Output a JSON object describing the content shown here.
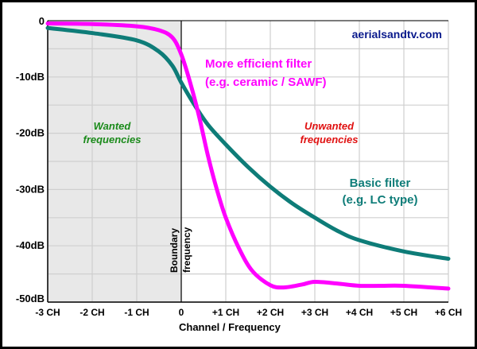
{
  "chart_data": {
    "type": "line",
    "xlabel": "Channel / Frequency",
    "ylabel": "",
    "xlim": [
      -3,
      6
    ],
    "ylim": [
      -50,
      0
    ],
    "grid": true,
    "x_ticks": [
      -3,
      -2,
      -1,
      0,
      1,
      2,
      3,
      4,
      5,
      6
    ],
    "x_tick_labels": [
      "-3 CH",
      "-2 CH",
      "-1 CH",
      "0",
      "+1 CH",
      "+2 CH",
      "+3 CH",
      "+4 CH",
      "+5 CH",
      "+6 CH"
    ],
    "y_ticks": [
      0,
      -10,
      -20,
      -30,
      -40,
      -50
    ],
    "y_tick_labels": [
      "0",
      "-10dB",
      "-20dB",
      "-30dB",
      "-40dB",
      "-50dB"
    ],
    "shaded_region": {
      "x": [
        -3,
        0
      ],
      "color": "#e8e8e8"
    },
    "series": [
      {
        "key": "basic",
        "color": "#0e7c78",
        "x": [
          -3,
          -2,
          -1,
          -0.5,
          -0.2,
          0,
          0.3,
          0.6,
          1,
          1.5,
          2,
          2.5,
          3,
          3.5,
          4,
          5,
          6
        ],
        "y": [
          -1.3,
          -2.2,
          -3.5,
          -5.5,
          -8,
          -11,
          -15,
          -18.5,
          -22,
          -26,
          -29.5,
          -32.5,
          -35,
          -37.3,
          -39,
          -41,
          -42.3
        ]
      },
      {
        "key": "efficient",
        "color": "#ff00ff",
        "x": [
          -3,
          -2,
          -1,
          -0.5,
          -0.2,
          0,
          0.2,
          0.4,
          0.6,
          0.8,
          1,
          1.3,
          1.6,
          2,
          2.3,
          2.7,
          3,
          3.5,
          4,
          4.5,
          5,
          6
        ],
        "y": [
          -0.5,
          -0.6,
          -1,
          -1.7,
          -3,
          -6,
          -11,
          -17,
          -24,
          -30,
          -35,
          -40.5,
          -44.5,
          -47,
          -47.4,
          -46.9,
          -46.4,
          -46.7,
          -47.1,
          -47.1,
          -47.1,
          -47.6
        ]
      }
    ],
    "annotations": {
      "site": "aerialsandtv.com",
      "efficient_line1": "More efficient filter",
      "efficient_line2": "(e.g. ceramic / SAWF)",
      "wanted_line1": "Wanted",
      "wanted_line2": "frequencies",
      "unwanted_line1": "Unwanted",
      "unwanted_line2": "frequencies",
      "basic_line1": "Basic filter",
      "basic_line2": "(e.g. LC type)",
      "boundary_line1": "Boundary",
      "boundary_line2": "frequency"
    },
    "colors": {
      "site": "#0a1a8c",
      "wanted": "#1a8a1a",
      "unwanted": "#e01010",
      "efficient": "#ff00ff",
      "basic": "#0e7c78"
    }
  }
}
